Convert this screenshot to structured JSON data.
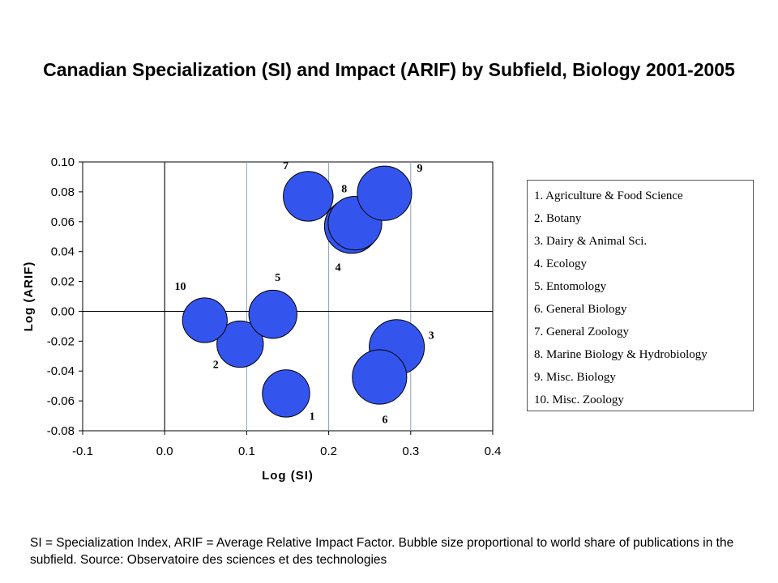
{
  "title": "Canadian Specialization (SI) and Impact (ARIF) by Subfield, Biology 2001-2005",
  "footnote": "SI = Specialization Index, ARIF = Average Relative Impact Factor. Bubble size proportional to world share of publications in the subfield. Source: Observatoire des sciences et des technologies",
  "chart_data": {
    "type": "scatter",
    "subtype": "bubble",
    "title": "Canadian Specialization (SI) and Impact (ARIF) by Subfield, Biology 2001-2005",
    "xlabel": "Log (SI)",
    "ylabel": "Log (ARIF)",
    "xlim": [
      -0.1,
      0.4
    ],
    "ylim": [
      -0.08,
      0.1
    ],
    "xticks": [
      "-0.1",
      "0.0",
      "0.1",
      "0.2",
      "0.3",
      "0.4"
    ],
    "yticks": [
      "0.10",
      "0.08",
      "0.06",
      "0.04",
      "0.02",
      "0.00",
      "-0.02",
      "-0.04",
      "-0.06",
      "-0.08"
    ],
    "xtick_values": [
      -0.1,
      0.0,
      0.1,
      0.2,
      0.3,
      0.4
    ],
    "ytick_values": [
      0.1,
      0.08,
      0.06,
      0.04,
      0.02,
      0.0,
      -0.02,
      -0.04,
      -0.06,
      -0.08
    ],
    "grid": "vertical",
    "bubble_color": "#3355ee",
    "points": [
      {
        "label": "1",
        "x": 0.148,
        "y": -0.055,
        "size": 0.56
      },
      {
        "label": "2",
        "x": 0.092,
        "y": -0.022,
        "size": 0.54
      },
      {
        "label": "3",
        "x": 0.283,
        "y": -0.024,
        "size": 0.76
      },
      {
        "label": "4",
        "x": 0.228,
        "y": 0.057,
        "size": 0.74
      },
      {
        "label": "5",
        "x": 0.132,
        "y": -0.002,
        "size": 0.58
      },
      {
        "label": "6",
        "x": 0.262,
        "y": -0.044,
        "size": 0.74
      },
      {
        "label": "7",
        "x": 0.175,
        "y": 0.077,
        "size": 0.62
      },
      {
        "label": "8",
        "x": 0.232,
        "y": 0.059,
        "size": 0.72
      },
      {
        "label": "9",
        "x": 0.268,
        "y": 0.079,
        "size": 0.74
      },
      {
        "label": "10",
        "x": 0.049,
        "y": -0.006,
        "size": 0.5
      }
    ],
    "legend": [
      "1. Agriculture & Food Science",
      "2. Botany",
      "3. Dairy & Animal Sci.",
      "4. Ecology",
      "5. Entomology",
      "6. General Biology",
      "7. General Zoology",
      "8. Marine Biology & Hydrobiology",
      "9. Misc. Biology",
      "10. Misc. Zoology"
    ],
    "legend_position": "right"
  }
}
